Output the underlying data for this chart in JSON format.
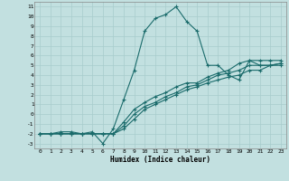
{
  "title": "",
  "xlabel": "Humidex (Indice chaleur)",
  "bg_color": "#c2e0e0",
  "grid_color": "#a8cccc",
  "line_color": "#1a6b6b",
  "xlim": [
    -0.5,
    23.5
  ],
  "ylim": [
    -3.5,
    11.5
  ],
  "xticks": [
    0,
    1,
    2,
    3,
    4,
    5,
    6,
    7,
    8,
    9,
    10,
    11,
    12,
    13,
    14,
    15,
    16,
    17,
    18,
    19,
    20,
    21,
    22,
    23
  ],
  "yticks": [
    -3,
    -2,
    -1,
    0,
    1,
    2,
    3,
    4,
    5,
    6,
    7,
    8,
    9,
    10,
    11
  ],
  "line1_x": [
    0,
    1,
    2,
    3,
    4,
    5,
    6,
    7,
    8,
    9,
    10,
    11,
    12,
    13,
    14,
    15,
    16,
    17,
    18,
    19,
    20,
    21,
    22,
    23
  ],
  "line1_y": [
    -2,
    -2,
    -1.8,
    -1.8,
    -2,
    -1.8,
    -3.0,
    -1.5,
    1.5,
    4.5,
    8.5,
    9.8,
    10.2,
    11.0,
    9.5,
    8.5,
    5.0,
    5.0,
    4.0,
    3.5,
    5.5,
    5.5,
    5.5,
    5.5
  ],
  "line2_x": [
    0,
    1,
    2,
    3,
    4,
    5,
    6,
    7,
    8,
    9,
    10,
    11,
    12,
    13,
    14,
    15,
    16,
    17,
    18,
    19,
    20,
    21,
    22,
    23
  ],
  "line2_y": [
    -2,
    -2,
    -2,
    -2,
    -2,
    -2,
    -2,
    -2,
    -1.5,
    -0.5,
    0.5,
    1.0,
    1.5,
    2.0,
    2.5,
    2.8,
    3.2,
    3.5,
    3.8,
    4.0,
    4.5,
    4.5,
    5.0,
    5.0
  ],
  "line3_x": [
    0,
    1,
    2,
    3,
    4,
    5,
    6,
    7,
    8,
    9,
    10,
    11,
    12,
    13,
    14,
    15,
    16,
    17,
    18,
    19,
    20,
    21,
    22,
    23
  ],
  "line3_y": [
    -2,
    -2,
    -2,
    -2,
    -2,
    -2,
    -2,
    -2,
    -1.2,
    0.0,
    0.8,
    1.2,
    1.8,
    2.2,
    2.8,
    3.0,
    3.5,
    4.0,
    4.2,
    4.5,
    5.0,
    5.0,
    5.0,
    5.2
  ],
  "line4_x": [
    0,
    1,
    2,
    3,
    4,
    5,
    6,
    7,
    8,
    9,
    10,
    11,
    12,
    13,
    14,
    15,
    16,
    17,
    18,
    19,
    20,
    21,
    22,
    23
  ],
  "line4_y": [
    -2,
    -2,
    -2,
    -2,
    -2,
    -2,
    -2,
    -2,
    -0.8,
    0.5,
    1.2,
    1.8,
    2.2,
    2.8,
    3.2,
    3.2,
    3.8,
    4.2,
    4.5,
    5.2,
    5.5,
    5.0,
    5.0,
    5.2
  ]
}
